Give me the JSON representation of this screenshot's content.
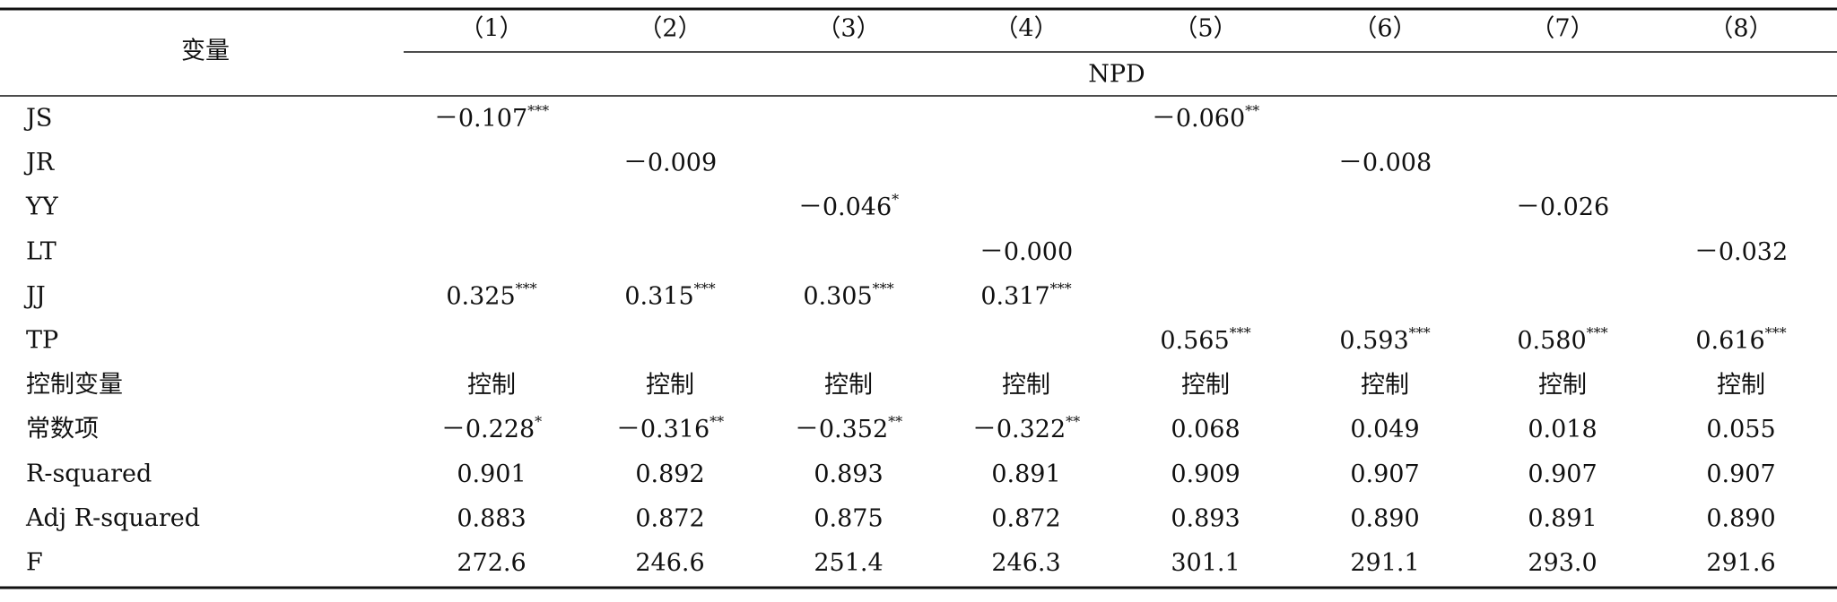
{
  "table": {
    "header": {
      "variable": "变量",
      "columns": [
        "（1）",
        "（2）",
        "（3）",
        "（4）",
        "（5）",
        "（6）",
        "（7）",
        "（8）"
      ],
      "group": "NPD"
    },
    "rows": [
      {
        "label": "JS",
        "cells": [
          {
            "text": "－0.107",
            "stars": "***"
          },
          null,
          null,
          null,
          {
            "text": "－0.060",
            "stars": "**"
          },
          null,
          null,
          null
        ]
      },
      {
        "label": "JR",
        "cells": [
          null,
          {
            "text": "－0.009"
          },
          null,
          null,
          null,
          {
            "text": "－0.008"
          },
          null,
          null
        ]
      },
      {
        "label": "YY",
        "cells": [
          null,
          null,
          {
            "text": "－0.046",
            "stars": "*"
          },
          null,
          null,
          null,
          {
            "text": "－0.026"
          },
          null
        ]
      },
      {
        "label": "LT",
        "cells": [
          null,
          null,
          null,
          {
            "text": "－0.000"
          },
          null,
          null,
          null,
          {
            "text": "－0.032"
          }
        ]
      },
      {
        "label": "JJ",
        "cells": [
          {
            "text": "0.325",
            "stars": "***"
          },
          {
            "text": "0.315",
            "stars": "***"
          },
          {
            "text": "0.305",
            "stars": "***"
          },
          {
            "text": "0.317",
            "stars": "***"
          },
          null,
          null,
          null,
          null
        ]
      },
      {
        "label": "TP",
        "cells": [
          null,
          null,
          null,
          null,
          {
            "text": "0.565",
            "stars": "***"
          },
          {
            "text": "0.593",
            "stars": "***"
          },
          {
            "text": "0.580",
            "stars": "***"
          },
          {
            "text": "0.616",
            "stars": "***"
          }
        ]
      },
      {
        "label": "控制变量",
        "cells": [
          {
            "text": "控制"
          },
          {
            "text": "控制"
          },
          {
            "text": "控制"
          },
          {
            "text": "控制"
          },
          {
            "text": "控制"
          },
          {
            "text": "控制"
          },
          {
            "text": "控制"
          },
          {
            "text": "控制"
          }
        ]
      },
      {
        "label": "常数项",
        "cells": [
          {
            "text": "－0.228",
            "stars": "*"
          },
          {
            "text": "－0.316",
            "stars": "**"
          },
          {
            "text": "－0.352",
            "stars": "**"
          },
          {
            "text": "－0.322",
            "stars": "**"
          },
          {
            "text": "0.068"
          },
          {
            "text": "0.049"
          },
          {
            "text": "0.018"
          },
          {
            "text": "0.055"
          }
        ]
      },
      {
        "label": "R-squared",
        "cells": [
          {
            "text": "0.901"
          },
          {
            "text": "0.892"
          },
          {
            "text": "0.893"
          },
          {
            "text": "0.891"
          },
          {
            "text": "0.909"
          },
          {
            "text": "0.907"
          },
          {
            "text": "0.907"
          },
          {
            "text": "0.907"
          }
        ]
      },
      {
        "label": "Adj R-squared",
        "cells": [
          {
            "text": "0.883"
          },
          {
            "text": "0.872"
          },
          {
            "text": "0.875"
          },
          {
            "text": "0.872"
          },
          {
            "text": "0.893"
          },
          {
            "text": "0.890"
          },
          {
            "text": "0.891"
          },
          {
            "text": "0.890"
          }
        ]
      },
      {
        "label": "F",
        "cells": [
          {
            "text": "272.6"
          },
          {
            "text": "246.6"
          },
          {
            "text": "251.4"
          },
          {
            "text": "246.3"
          },
          {
            "text": "301.1"
          },
          {
            "text": "291.1"
          },
          {
            "text": "293.0"
          },
          {
            "text": "291.6"
          }
        ]
      }
    ]
  }
}
